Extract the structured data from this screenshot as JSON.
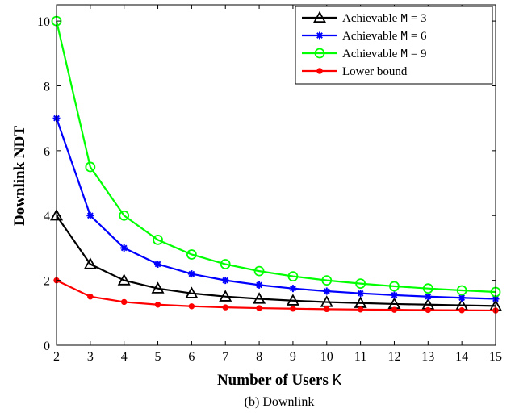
{
  "chart_data": {
    "type": "line",
    "xlabel": {
      "text": "Number of Users ",
      "var": "K"
    },
    "ylabel": "Downlink NDT",
    "caption": "(b) Downlink",
    "xlim": [
      2,
      15
    ],
    "ylim": [
      0,
      10.5
    ],
    "xticks": [
      2,
      3,
      4,
      5,
      6,
      7,
      8,
      9,
      10,
      11,
      12,
      13,
      14,
      15
    ],
    "yticks": [
      0,
      2,
      4,
      6,
      8,
      10
    ],
    "x": [
      2,
      3,
      4,
      5,
      6,
      7,
      8,
      9,
      10,
      11,
      12,
      13,
      14,
      15
    ],
    "legend_position": "top-right",
    "grid": false,
    "series": [
      {
        "name": "Achievable M = 3",
        "label_prefix": "Achievable ",
        "label_var": "M",
        "label_suffix": " = 3",
        "color": "#000000",
        "marker": "triangle",
        "values": [
          4.0,
          2.5,
          2.0,
          1.75,
          1.6,
          1.5,
          1.43,
          1.375,
          1.33,
          1.3,
          1.27,
          1.25,
          1.23,
          1.21
        ]
      },
      {
        "name": "Achievable M = 6",
        "label_prefix": "Achievable ",
        "label_var": "M",
        "label_suffix": " = 6",
        "color": "#0000ff",
        "marker": "star",
        "values": [
          7.0,
          4.0,
          3.0,
          2.5,
          2.2,
          2.0,
          1.857,
          1.75,
          1.667,
          1.6,
          1.545,
          1.5,
          1.462,
          1.43
        ]
      },
      {
        "name": "Achievable M = 9",
        "label_prefix": "Achievable ",
        "label_var": "M",
        "label_suffix": " = 9",
        "color": "#00ff00",
        "marker": "circle",
        "values": [
          10.0,
          5.5,
          4.0,
          3.25,
          2.8,
          2.5,
          2.286,
          2.125,
          2.0,
          1.9,
          1.818,
          1.75,
          1.692,
          1.643
        ]
      },
      {
        "name": "Lower bound",
        "label_prefix": "Lower bound",
        "label_var": "",
        "label_suffix": "",
        "color": "#ff0000",
        "marker": "dot",
        "values": [
          2.0,
          1.5,
          1.333,
          1.25,
          1.2,
          1.167,
          1.143,
          1.125,
          1.111,
          1.1,
          1.091,
          1.083,
          1.077,
          1.071
        ]
      }
    ]
  }
}
